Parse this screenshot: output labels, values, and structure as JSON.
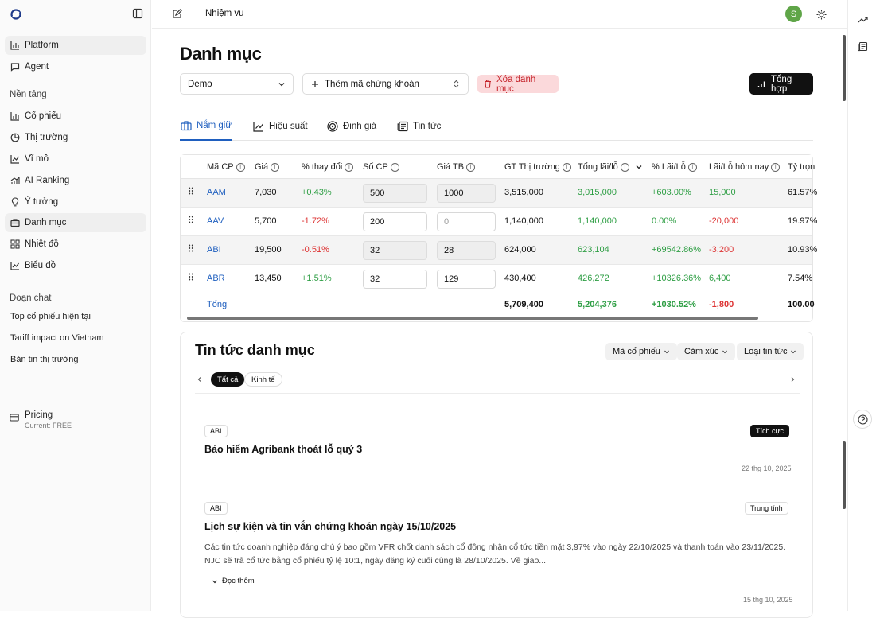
{
  "sidebar": {
    "main_items": [
      {
        "label": "Platform",
        "icon": "bar-chart-icon"
      },
      {
        "label": "Agent",
        "icon": "message-icon"
      }
    ],
    "section_label": "Nền tảng",
    "items": [
      {
        "label": "Cổ phiếu",
        "icon": "bar-chart-icon"
      },
      {
        "label": "Thị trường",
        "icon": "pie-chart-icon"
      },
      {
        "label": "Vĩ mô",
        "icon": "line-chart-icon"
      },
      {
        "label": "AI Ranking",
        "icon": "trend-bars-icon"
      },
      {
        "label": "Ý tưởng",
        "icon": "lightbulb-icon"
      },
      {
        "label": "Danh mục",
        "icon": "briefcase-icon"
      },
      {
        "label": "Nhiệt đồ",
        "icon": "grid-icon"
      },
      {
        "label": "Biểu đồ",
        "icon": "line-chart-icon"
      }
    ],
    "chat_label": "Đoạn chat",
    "chats": [
      "Top cổ phiếu hiện tại",
      "Tariff impact on Vietnam",
      "Bản tin thị trường"
    ],
    "pricing": {
      "title": "Pricing",
      "sub": "Current: FREE"
    }
  },
  "topbar": {
    "title": "Nhiệm vụ",
    "avatar": "S"
  },
  "page": {
    "title": "Danh mục",
    "portfolio_select": "Demo",
    "add_stock": "Thêm mã chứng khoán",
    "delete": "Xóa danh mục",
    "summary": "Tổng hợp"
  },
  "tabs": [
    {
      "label": "Nắm giữ",
      "icon": "briefcase-icon"
    },
    {
      "label": "Hiệu suất",
      "icon": "line-chart-icon"
    },
    {
      "label": "Định giá",
      "icon": "target-icon"
    },
    {
      "label": "Tin tức",
      "icon": "newspaper-icon"
    }
  ],
  "table": {
    "headers": [
      "Mã CP",
      "Giá",
      "% thay đổi",
      "Số CP",
      "Giá TB",
      "GT Thị trường",
      "Tổng lãi/lỗ",
      "% Lãi/Lỗ",
      "Lãi/Lỗ hôm nay",
      "Tỷ trọn"
    ],
    "rows": [
      {
        "code": "AAM",
        "price": "7,030",
        "change": "+0.43%",
        "shares": "500",
        "avg": "1000",
        "value": "3,515,000",
        "pl": "3,015,000",
        "pl_pct": "+603.00%",
        "today": "15,000",
        "weight": "61.57%"
      },
      {
        "code": "AAV",
        "price": "5,700",
        "change": "-1.72%",
        "shares": "200",
        "avg": "0",
        "value": "1,140,000",
        "pl": "1,140,000",
        "pl_pct": "0.00%",
        "today": "-20,000",
        "weight": "19.97%"
      },
      {
        "code": "ABI",
        "price": "19,500",
        "change": "-0.51%",
        "shares": "32",
        "avg": "28",
        "value": "624,000",
        "pl": "623,104",
        "pl_pct": "+69542.86%",
        "today": "-3,200",
        "weight": "10.93%"
      },
      {
        "code": "ABR",
        "price": "13,450",
        "change": "+1.51%",
        "shares": "32",
        "avg": "129",
        "value": "430,400",
        "pl": "426,272",
        "pl_pct": "+10326.36%",
        "today": "6,400",
        "weight": "7.54%"
      }
    ],
    "total": {
      "label": "Tổng",
      "value": "5,709,400",
      "pl": "5,204,376",
      "pl_pct": "+1030.52%",
      "today": "-1,800",
      "weight": "100.00"
    }
  },
  "news": {
    "title": "Tin tức danh mục",
    "filters": [
      "Mã cổ phiếu",
      "Cảm xúc",
      "Loại tin tức"
    ],
    "chips": [
      "Tất cả",
      "Kinh tế"
    ],
    "articles": [
      {
        "tag": "ABI",
        "sentiment": "Tích cực",
        "title": "Bảo hiểm Agribank thoát lỗ quý 3",
        "date": "22 thg 10, 2025"
      },
      {
        "tag": "ABI",
        "sentiment": "Trung tính",
        "title": "Lịch sự kiện và tin vắn chứng khoán ngày 15/10/2025",
        "body": "Các tin tức doanh nghiệp đáng chú ý bao gồm VFR chốt danh sách cổ đông nhận cổ tức tiền mặt 3,97% vào ngày 22/10/2025 và thanh toán vào 23/11/2025. NJC sẽ trả cổ tức bằng cổ phiếu tỷ lệ 10:1, ngày đăng ký cuối cùng là 28/10/2025. Về giao...",
        "readmore": "Đọc thêm",
        "date": "15 thg 10, 2025"
      }
    ]
  }
}
